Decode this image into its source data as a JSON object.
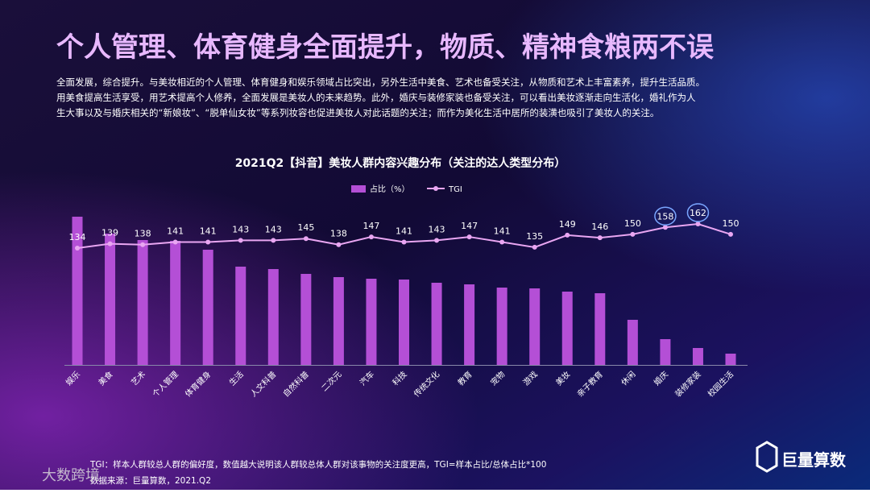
{
  "header": {
    "title": "个人管理、体育健身全面提升，物质、精神食粮两不误",
    "paragraph": [
      "全面发展，综合提升。与美妆相近的个人管理、体育健身和娱乐领域占比突出，另外生活中美食、艺术也备受关注，从物质和艺术上丰富素养，提升生活品质。",
      "用美食提高生活享受，用艺术提高个人修养，全面发展是美妆人的未来趋势。此外，婚庆与装修家装也备受关注，可以看出美妆逐渐走向生活化，婚礼作为人",
      "生大事以及与婚庆相关的“新娘妆”、“脱单仙女妆”等系列妆容也促进美妆人对此话题的关注；而作为美化生活中居所的装潢也吸引了美妆人的关注。"
    ]
  },
  "chart_data": {
    "type": "bar-line",
    "title": "2021Q2【抖音】美妆人群内容兴趣分布（关注的达人类型分布）",
    "categories": [
      "娱乐",
      "美食",
      "艺术",
      "个人管理",
      "体育健身",
      "生活",
      "人文科普",
      "自然科普",
      "二次元",
      "汽车",
      "科技",
      "传统文化",
      "教育",
      "宠物",
      "游戏",
      "美妆",
      "亲子教育",
      "休闲",
      "婚庆",
      "装修家装",
      "校园生活"
    ],
    "series": [
      {
        "name": "占比（%）",
        "color": "#b44fd6",
        "values": [
          18.4,
          16.3,
          15.5,
          15.4,
          14.3,
          12.2,
          11.9,
          11.3,
          10.9,
          10.7,
          10.6,
          10.2,
          10.0,
          9.6,
          9.5,
          9.1,
          8.9,
          5.6,
          3.2,
          2.1,
          1.4
        ]
      },
      {
        "name": "TGI",
        "color": "#e9a6f2",
        "values": [
          134,
          139,
          138,
          141,
          141,
          143,
          143,
          145,
          138,
          147,
          141,
          143,
          147,
          141,
          135,
          149,
          146,
          150,
          158,
          162,
          150
        ]
      }
    ]
  },
  "footer": {
    "note": "TGI：样本人群较总人群的偏好度，数值越大说明该人群较总体人群对该事物的关注度更高，TGI=样本占比/总体占比*100",
    "source": "数据来源：巨量算数，2021.Q2",
    "logo": "巨量算数",
    "watermark": "大数跨境"
  }
}
